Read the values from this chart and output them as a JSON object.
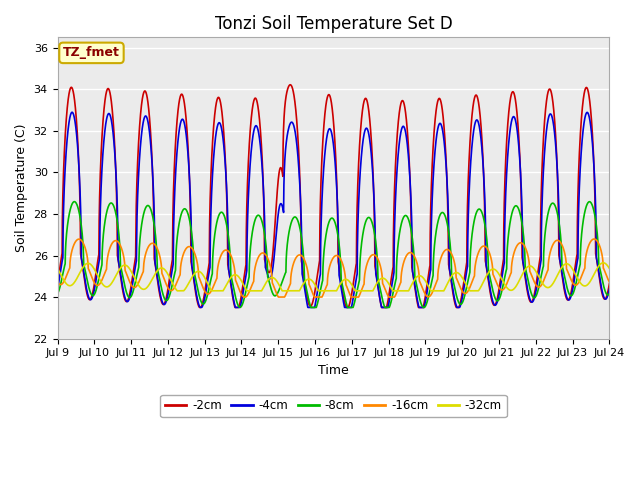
{
  "title": "Tonzi Soil Temperature Set D",
  "xlabel": "Time",
  "ylabel": "Soil Temperature (C)",
  "annotation": "TZ_fmet",
  "annotation_color": "#8B0000",
  "annotation_bg": "#FFFFCC",
  "annotation_edge": "#CCAA00",
  "xlim_start": 0,
  "xlim_end": 360,
  "ylim": [
    22,
    36.5
  ],
  "yticks": [
    22,
    24,
    26,
    28,
    30,
    32,
    34,
    36
  ],
  "xtick_labels": [
    "Jul 9",
    "Jul 10",
    "Jul 11",
    "Jul 12",
    "Jul 13",
    "Jul 14",
    "Jul 15",
    "Jul 16",
    "Jul 17",
    "Jul 18",
    "Jul 19",
    "Jul 20",
    "Jul 21",
    "Jul 22",
    "Jul 23",
    "Jul 24"
  ],
  "xtick_positions": [
    0,
    24,
    48,
    72,
    96,
    120,
    144,
    168,
    192,
    216,
    240,
    264,
    288,
    312,
    336,
    360
  ],
  "series": [
    {
      "label": "-2cm",
      "color": "#CC0000",
      "lw": 1.2
    },
    {
      "label": "-4cm",
      "color": "#0000DD",
      "lw": 1.2
    },
    {
      "label": "-8cm",
      "color": "#00BB00",
      "lw": 1.2
    },
    {
      "label": "-16cm",
      "color": "#FF8800",
      "lw": 1.2
    },
    {
      "label": "-32cm",
      "color": "#DDDD00",
      "lw": 1.2
    }
  ],
  "bg_color": "#FFFFFF",
  "plot_bg": "#EBEBEB",
  "grid_color": "#FFFFFF",
  "title_fontsize": 12,
  "axis_fontsize": 9,
  "tick_fontsize": 8
}
